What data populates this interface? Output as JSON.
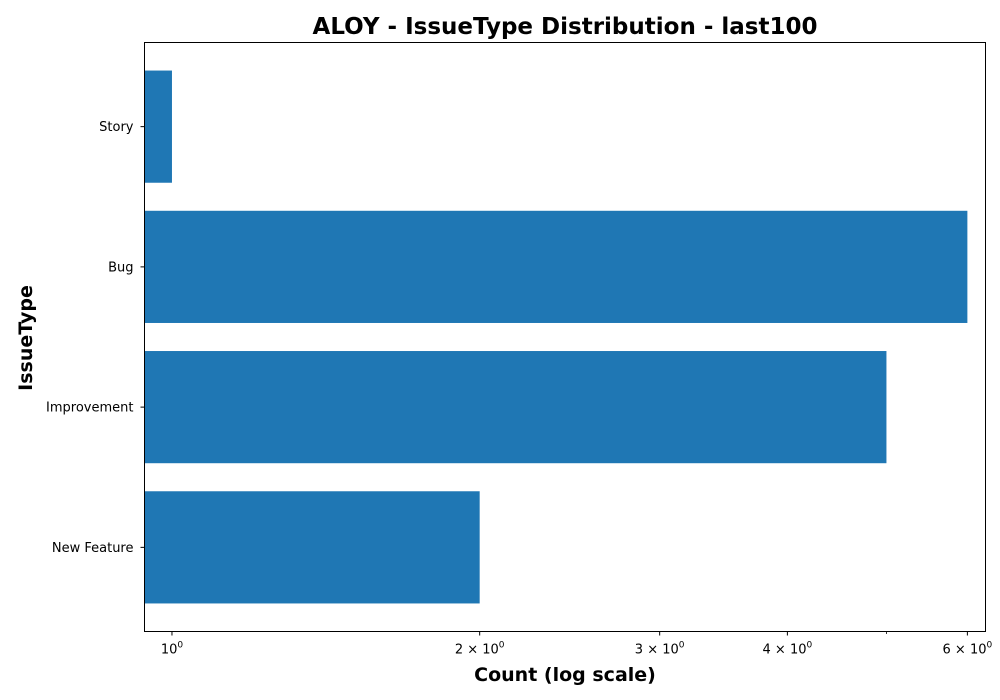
{
  "chart_data": {
    "type": "bar",
    "orientation": "horizontal",
    "title": "ALOY - IssueType Distribution - last100",
    "xlabel": "Count (log scale)",
    "ylabel": "IssueType",
    "x_scale": "log",
    "xlim": [
      0.94,
      6.25
    ],
    "categories": [
      "Story",
      "Bug",
      "Improvement",
      "New Feature"
    ],
    "values": [
      1,
      6,
      5,
      2
    ],
    "bar_color": "#1f77b4",
    "x_ticks": [
      {
        "value": 1,
        "base": "10",
        "exp": "0"
      },
      {
        "value": 2,
        "base": "2 × 10",
        "exp": "0"
      },
      {
        "value": 3,
        "base": "3 × 10",
        "exp": "0"
      },
      {
        "value": 4,
        "base": "4 × 10",
        "exp": "0"
      },
      {
        "value": 6,
        "base": "6 × 10",
        "exp": "0"
      }
    ],
    "x_minor_ticks": [
      5
    ],
    "grid": false,
    "legend": "none"
  }
}
